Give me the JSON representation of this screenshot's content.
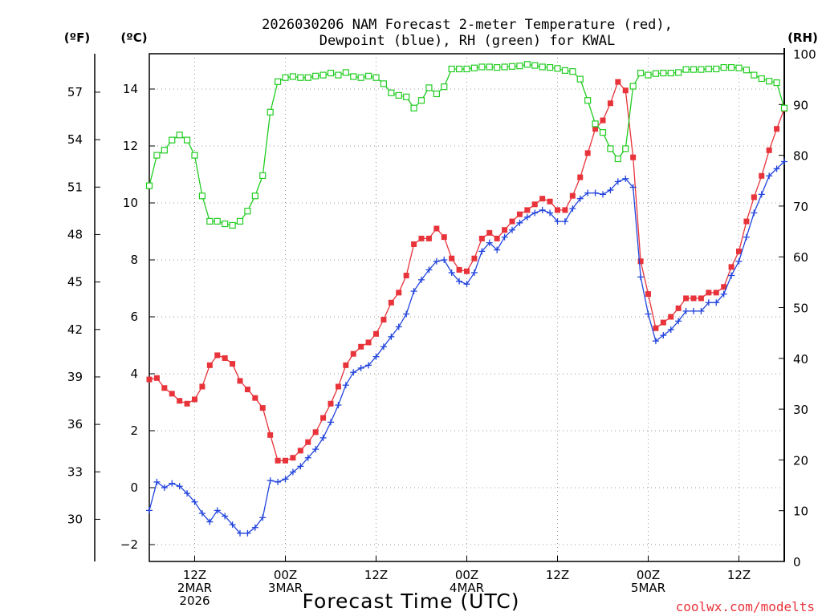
{
  "title_line1": "2026030206 NAM Forecast 2-meter Temperature (red),",
  "title_line2": "Dewpoint (blue), RH (green) for KWAL",
  "units": {
    "fahrenheit": "(ºF)",
    "celsius": "(ºC)",
    "rh": "(RH)"
  },
  "xlabel": "Forecast Time (UTC)",
  "credit": "coolwx.com/modelts",
  "colors": {
    "temperature": "#e8333a",
    "dewpoint": "#2244dd",
    "rh": "#22cc22",
    "grid": "#9a9a9a"
  },
  "chart_data": {
    "type": "line",
    "title": "2026030206 NAM Forecast 2-meter Temperature (red), Dewpoint (blue), RH (green) for KWAL",
    "x_hours_range": [
      0,
      84
    ],
    "x_ticks": [
      {
        "hour": 6,
        "lines": [
          "12Z",
          "2MAR",
          "2026"
        ]
      },
      {
        "hour": 18,
        "lines": [
          "00Z",
          "3MAR"
        ]
      },
      {
        "hour": 30,
        "lines": [
          "12Z"
        ]
      },
      {
        "hour": 42,
        "lines": [
          "00Z",
          "4MAR"
        ]
      },
      {
        "hour": 54,
        "lines": [
          "12Z"
        ]
      },
      {
        "hour": 66,
        "lines": [
          "00Z",
          "5MAR"
        ]
      },
      {
        "hour": 78,
        "lines": [
          "12Z"
        ]
      }
    ],
    "y_celsius": {
      "range": [
        -2.6,
        15.2
      ],
      "ticks": [
        -2,
        0,
        2,
        4,
        6,
        8,
        10,
        12,
        14
      ]
    },
    "y_fahrenheit_ticks": [
      30,
      33,
      36,
      39,
      42,
      45,
      48,
      51,
      54,
      57
    ],
    "y_rh": {
      "range": [
        0,
        100
      ],
      "ticks": [
        0,
        10,
        20,
        30,
        40,
        50,
        60,
        70,
        80,
        90,
        100
      ]
    },
    "series": [
      {
        "name": "Temperature (°C)",
        "axis": "celsius",
        "marker": "filled-square",
        "values": [
          3.8,
          3.85,
          3.5,
          3.3,
          3.05,
          2.95,
          3.1,
          3.55,
          4.3,
          4.65,
          4.55,
          4.35,
          3.75,
          3.45,
          3.15,
          2.8,
          1.85,
          0.95,
          0.95,
          1.05,
          1.3,
          1.6,
          1.95,
          2.45,
          2.95,
          3.55,
          4.3,
          4.7,
          4.95,
          5.1,
          5.4,
          5.9,
          6.5,
          6.85,
          7.45,
          8.55,
          8.75,
          8.75,
          9.1,
          8.8,
          8.05,
          7.65,
          7.6,
          8.05,
          8.75,
          8.95,
          8.75,
          9.05,
          9.35,
          9.6,
          9.75,
          9.95,
          10.15,
          10.05,
          9.75,
          9.75,
          10.25,
          10.9,
          11.75,
          12.6,
          12.9,
          13.5,
          14.25,
          13.95,
          11.6,
          7.95,
          6.8,
          5.6,
          5.8,
          6.0,
          6.3,
          6.65,
          6.65,
          6.65,
          6.85,
          6.85,
          7.05,
          7.75,
          8.3,
          9.35,
          10.2,
          10.95,
          11.85,
          12.6,
          13.3
        ]
      },
      {
        "name": "Dewpoint (°C)",
        "axis": "celsius",
        "marker": "plus",
        "values": [
          -0.8,
          0.2,
          0.0,
          0.15,
          0.05,
          -0.2,
          -0.5,
          -0.9,
          -1.2,
          -0.8,
          -1.0,
          -1.3,
          -1.6,
          -1.6,
          -1.4,
          -1.05,
          0.25,
          0.2,
          0.3,
          0.55,
          0.75,
          1.05,
          1.35,
          1.75,
          2.3,
          2.9,
          3.6,
          4.05,
          4.2,
          4.3,
          4.6,
          4.95,
          5.3,
          5.65,
          6.1,
          6.9,
          7.3,
          7.65,
          7.95,
          8.0,
          7.55,
          7.25,
          7.15,
          7.55,
          8.3,
          8.6,
          8.35,
          8.8,
          9.05,
          9.3,
          9.5,
          9.65,
          9.75,
          9.65,
          9.35,
          9.35,
          9.8,
          10.15,
          10.35,
          10.35,
          10.3,
          10.45,
          10.75,
          10.85,
          10.55,
          7.4,
          6.1,
          5.15,
          5.35,
          5.55,
          5.85,
          6.2,
          6.2,
          6.2,
          6.5,
          6.5,
          6.8,
          7.45,
          7.95,
          8.8,
          9.65,
          10.3,
          10.95,
          11.2,
          11.45
        ]
      },
      {
        "name": "Relative Humidity (%)",
        "axis": "rh",
        "marker": "open-square",
        "values": [
          74,
          80,
          81,
          83,
          84,
          83,
          80,
          72,
          67,
          67,
          66.5,
          66.2,
          67,
          69,
          72,
          76,
          88.5,
          94.5,
          95.3,
          95.5,
          95.3,
          95.3,
          95.6,
          95.8,
          96.2,
          95.8,
          96.3,
          95.5,
          95.3,
          95.6,
          95.3,
          94.1,
          92.3,
          91.8,
          91.5,
          89.3,
          90.8,
          93.3,
          92.1,
          93.5,
          97,
          97,
          97,
          97.2,
          97.4,
          97.4,
          97.3,
          97.4,
          97.5,
          97.6,
          97.9,
          97.7,
          97.4,
          97.3,
          97.1,
          96.7,
          96.5,
          95,
          90.8,
          86.2,
          84.5,
          81.3,
          79.3,
          81.3,
          93.6,
          96.2,
          95.8,
          96.1,
          96.2,
          96.2,
          96.3,
          96.9,
          96.9,
          96.9,
          97.0,
          97.0,
          97.3,
          97.3,
          97.2,
          96.8,
          95.8,
          95.1,
          94.6,
          94.3,
          89.3
        ]
      }
    ]
  }
}
